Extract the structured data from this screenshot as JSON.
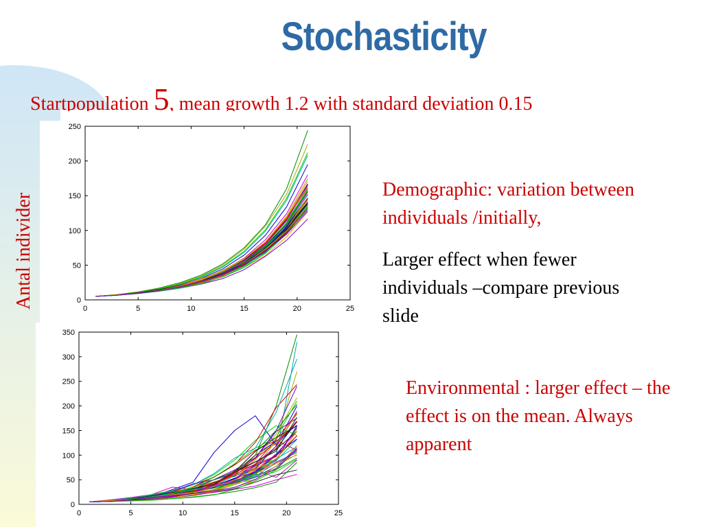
{
  "slide": {
    "title": "Stochasticity",
    "subtitle_a": "Startpopulation ",
    "subtitle_b": "5",
    "subtitle_c": ", mean growth 1.2 with standard deviation 0.15",
    "y_axis_caption": "Antal individer"
  },
  "notes": {
    "demographic": "Demographic: variation between individuals /initially,",
    "larger_effect": "Larger effect when fewer individuals –compare previous slide",
    "environmental": "Environmental : larger effect – the effect is on the mean. Always apparent"
  },
  "colors": {
    "title": "#2e6aa5",
    "accent_text": "#cc0000",
    "band_top": "#cfe6f7",
    "band_bottom": "#fbfad9",
    "series_palette": [
      "#0000cc",
      "#008800",
      "#dd0000",
      "#00aaaa",
      "#cc00cc",
      "#aaaa00",
      "#222222",
      "#00cc00",
      "#ff8800",
      "#6600cc"
    ]
  },
  "chart_data": [
    {
      "type": "line",
      "title": "",
      "xlabel": "",
      "ylabel": "",
      "xlim": [
        0,
        25
      ],
      "ylim": [
        0,
        250
      ],
      "x_ticks": [
        0,
        5,
        10,
        15,
        20,
        25
      ],
      "y_ticks": [
        0,
        50,
        100,
        150,
        200,
        250
      ],
      "x": [
        1,
        3,
        5,
        7,
        9,
        11,
        13,
        15,
        17,
        19,
        21
      ],
      "series_count": 50,
      "series": [
        {
          "values": [
            5,
            7.2,
            10.4,
            15,
            21.6,
            31.1,
            44.8,
            64.5,
            92.9,
            133.8,
            195
          ]
        },
        {
          "values": [
            5,
            7.6,
            11.5,
            17.1,
            25,
            36,
            52,
            75,
            108,
            160,
            244
          ]
        },
        {
          "values": [
            5,
            6.9,
            9.6,
            13.3,
            18.5,
            25.8,
            36,
            50.5,
            71,
            100,
            136
          ]
        },
        {
          "values": [
            5,
            7.3,
            10.7,
            15.6,
            22.6,
            32.7,
            47.3,
            68.4,
            98.9,
            143,
            208
          ]
        },
        {
          "values": [
            5,
            7.1,
            10.1,
            14.3,
            20.4,
            29.2,
            41.9,
            60.2,
            86.5,
            124,
            180
          ]
        },
        {
          "values": [
            5,
            7.5,
            11.1,
            16.3,
            23.8,
            34.6,
            50.3,
            73,
            106,
            152,
            224
          ]
        },
        {
          "values": [
            5,
            7,
            9.9,
            14,
            19.9,
            28.3,
            40.3,
            57.5,
            82.1,
            118,
            166
          ]
        },
        {
          "values": [
            5,
            7.4,
            10.9,
            15.9,
            23.1,
            33.4,
            48.3,
            69.9,
            101,
            146,
            212
          ]
        }
      ]
    },
    {
      "type": "line",
      "title": "",
      "xlabel": "",
      "ylabel": "",
      "xlim": [
        0,
        25
      ],
      "ylim": [
        0,
        350
      ],
      "x_ticks": [
        0,
        5,
        10,
        15,
        20,
        25
      ],
      "y_ticks": [
        0,
        50,
        100,
        150,
        200,
        250,
        300,
        350
      ],
      "x": [
        1,
        3,
        5,
        7,
        9,
        11,
        13,
        15,
        17,
        19,
        21
      ],
      "series_count": 50,
      "series": [
        {
          "values": [
            5,
            8,
            10,
            16,
            30,
            45,
            105,
            150,
            180,
            120,
            200
          ]
        },
        {
          "values": [
            5,
            6,
            9,
            14,
            20,
            28,
            40,
            60,
            100,
            200,
            345
          ]
        },
        {
          "values": [
            5,
            7,
            11,
            18,
            25,
            40,
            55,
            80,
            110,
            130,
            110
          ]
        },
        {
          "values": [
            5,
            6,
            8,
            11,
            16,
            22,
            30,
            42,
            60,
            100,
            330
          ]
        },
        {
          "values": [
            5,
            9,
            14,
            20,
            35,
            30,
            45,
            60,
            70,
            55,
            90
          ]
        },
        {
          "values": [
            5,
            7,
            10,
            13,
            18,
            25,
            35,
            50,
            75,
            130,
            270
          ]
        },
        {
          "values": [
            5,
            6,
            8,
            10,
            14,
            18,
            25,
            32,
            45,
            60,
            70
          ]
        },
        {
          "values": [
            5,
            8,
            12,
            20,
            28,
            40,
            60,
            90,
            130,
            160,
            140
          ]
        },
        {
          "values": [
            5,
            7,
            9,
            12,
            16,
            20,
            26,
            35,
            48,
            70,
            120
          ]
        },
        {
          "values": [
            5,
            6,
            9,
            15,
            24,
            34,
            50,
            70,
            95,
            150,
            240
          ]
        },
        {
          "values": [
            5,
            7,
            11,
            16,
            22,
            32,
            38,
            48,
            65,
            90,
            160
          ]
        },
        {
          "values": [
            5,
            6,
            7,
            9,
            12,
            15,
            20,
            26,
            34,
            45,
            85
          ]
        }
      ]
    }
  ]
}
